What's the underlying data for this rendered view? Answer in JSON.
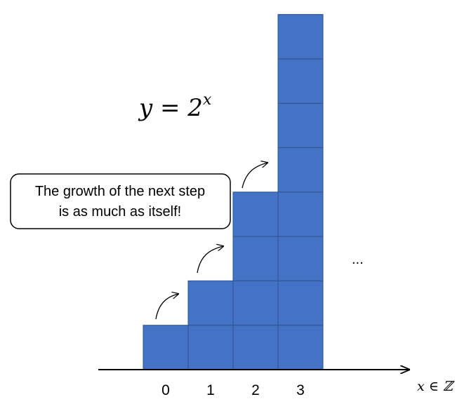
{
  "formula": {
    "base": "y = 2",
    "exponent": "x"
  },
  "axis": {
    "label": "x ∈ ℤ"
  },
  "callout": {
    "line1": "The growth of the next step",
    "line2": "is as much as itself!"
  },
  "ellipsis": "...",
  "colors": {
    "block_fill": "#4472C4",
    "block_stroke": "#2F528F",
    "axis": "#000000"
  },
  "chart_data": {
    "type": "bar",
    "categories": [
      "0",
      "1",
      "2",
      "3"
    ],
    "values": [
      1,
      2,
      4,
      8
    ]
  }
}
